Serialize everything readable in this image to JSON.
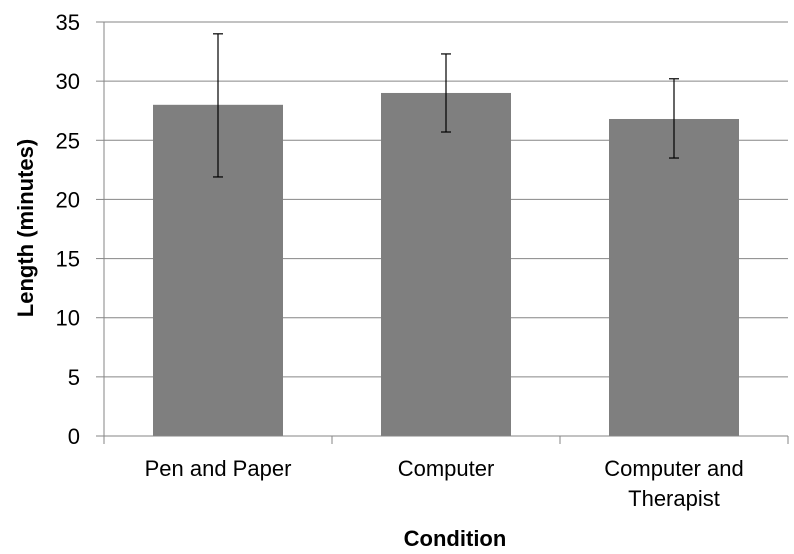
{
  "chart_data": {
    "type": "bar",
    "title": "",
    "xlabel": "Condition",
    "ylabel": "Length (minutes)",
    "categories": [
      [
        "Pen and Paper"
      ],
      [
        "Computer"
      ],
      [
        "Computer and",
        "Therapist"
      ]
    ],
    "values": [
      28.0,
      29.0,
      26.8
    ],
    "error_bars": [
      {
        "low": 21.9,
        "high": 34.0
      },
      {
        "low": 25.7,
        "high": 32.3
      },
      {
        "low": 23.5,
        "high": 30.2
      }
    ],
    "ylim": [
      0,
      35
    ],
    "yticks": [
      "0",
      "5",
      "10",
      "15",
      "20",
      "25",
      "30",
      "35"
    ],
    "grid": true,
    "legend": "none",
    "colors": {
      "bar": "#7f7f7f",
      "grid": "#868686",
      "axis": "#868686",
      "error_bar": "#000000"
    }
  }
}
